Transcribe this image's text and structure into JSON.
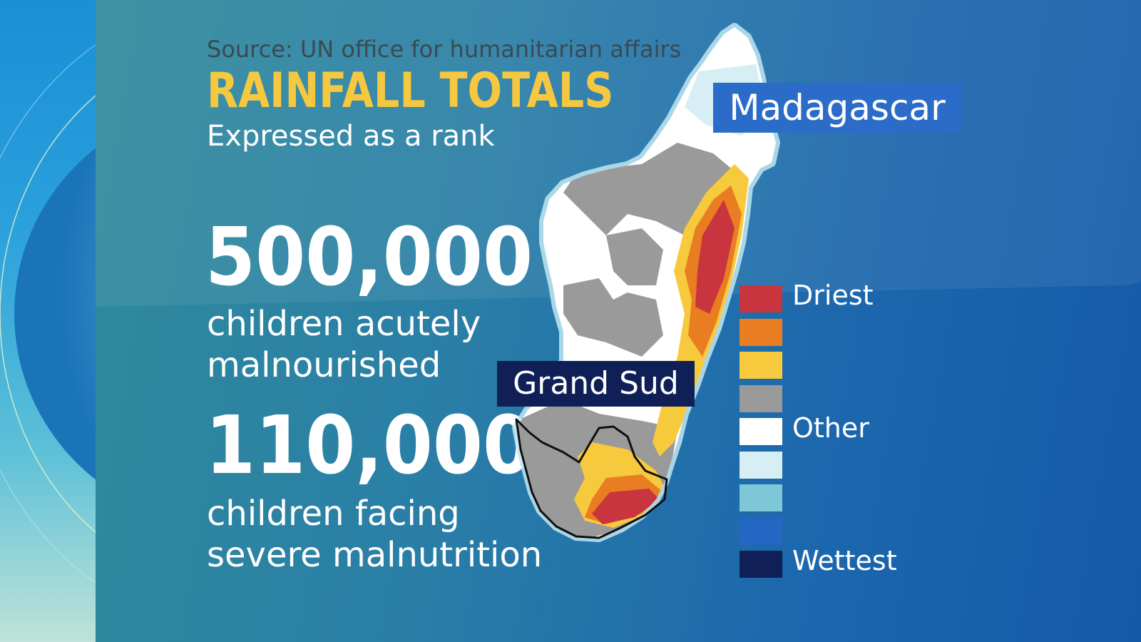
{
  "source": "Source: UN office for humanitarian affairs",
  "title": "RAINFALL TOTALS",
  "subtitle": "Expressed as a rank",
  "stats": [
    {
      "number": "500,000",
      "line1": "children acutely",
      "line2": "malnourished"
    },
    {
      "number": "110,000",
      "line1": "children facing",
      "line2": "severe malnutrition"
    }
  ],
  "map": {
    "country_label": "Madagascar",
    "region_label": "Grand Sud"
  },
  "legend": {
    "items": [
      {
        "color": "#c8353f",
        "label": "Driest"
      },
      {
        "color": "#e97d21",
        "label": ""
      },
      {
        "color": "#f7c93d",
        "label": ""
      },
      {
        "color": "#9a9a9a",
        "label": ""
      },
      {
        "color": "#ffffff",
        "label": "Other"
      },
      {
        "color": "#d6eef4",
        "label": ""
      },
      {
        "color": "#7ec7d6",
        "label": ""
      },
      {
        "color": "#2466c4",
        "label": ""
      },
      {
        "color": "#101f55",
        "label": "Wettest"
      }
    ]
  },
  "colors": {
    "title": "#f5c840",
    "country_label_bg": "#2c6cc9",
    "region_label_bg": "#102057"
  }
}
